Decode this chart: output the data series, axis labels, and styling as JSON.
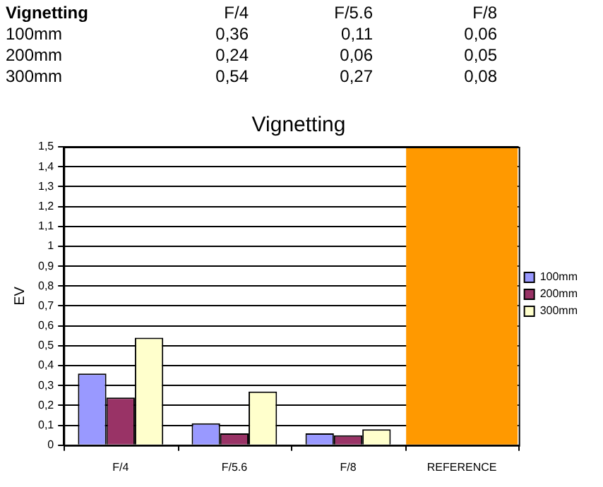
{
  "chart_data": {
    "type": "bar",
    "title": "Vignetting",
    "ylabel": "EV",
    "categories": [
      "F/4",
      "F/5.6",
      "F/8",
      "REFERENCE"
    ],
    "series": [
      {
        "name": "100mm",
        "color": "#9999ff",
        "values": [
          0.36,
          0.11,
          0.06,
          null
        ]
      },
      {
        "name": "200mm",
        "color": "#993366",
        "values": [
          0.24,
          0.06,
          0.05,
          null
        ]
      },
      {
        "name": "300mm",
        "color": "#ffffcc",
        "values": [
          0.54,
          0.27,
          0.08,
          null
        ]
      },
      {
        "color": "#ff9900",
        "values": [
          null,
          null,
          null,
          1.5
        ]
      }
    ],
    "annotations": [
      "Vignetting",
      "F/4",
      "F/5.6",
      "F/8",
      "100mm",
      "0,36",
      "0,11",
      "0,06",
      "200mm",
      "0,24",
      "0,06",
      "0,05",
      "300mm",
      "0,54",
      "0,27",
      "0,08"
    ],
    "ylim": [
      0,
      1.5
    ],
    "yticks": [
      0,
      {
        "value": 0.1,
        "label": "0,1"
      },
      {
        "value": 0.2,
        "label": "0,2"
      },
      {
        "value": 0.3,
        "label": "0,3"
      },
      {
        "value": 0.4,
        "label": "0,4"
      },
      {
        "value": 0.5,
        "label": "0,5"
      },
      {
        "value": 0.6,
        "label": "0,6"
      },
      {
        "value": 0.7,
        "label": "0,7"
      },
      {
        "value": 0.8,
        "label": "0,8"
      },
      {
        "value": 0.9,
        "label": "0,9"
      },
      1,
      {
        "value": 1.1,
        "label": "1,1"
      },
      {
        "value": 1.2,
        "label": "1,2"
      },
      {
        "value": 1.3,
        "label": "1,3"
      },
      {
        "value": 1.4,
        "label": "1,4"
      },
      {
        "value": 1.5,
        "label": "1,5"
      }
    ],
    "grid": "y",
    "legend": "right"
  }
}
